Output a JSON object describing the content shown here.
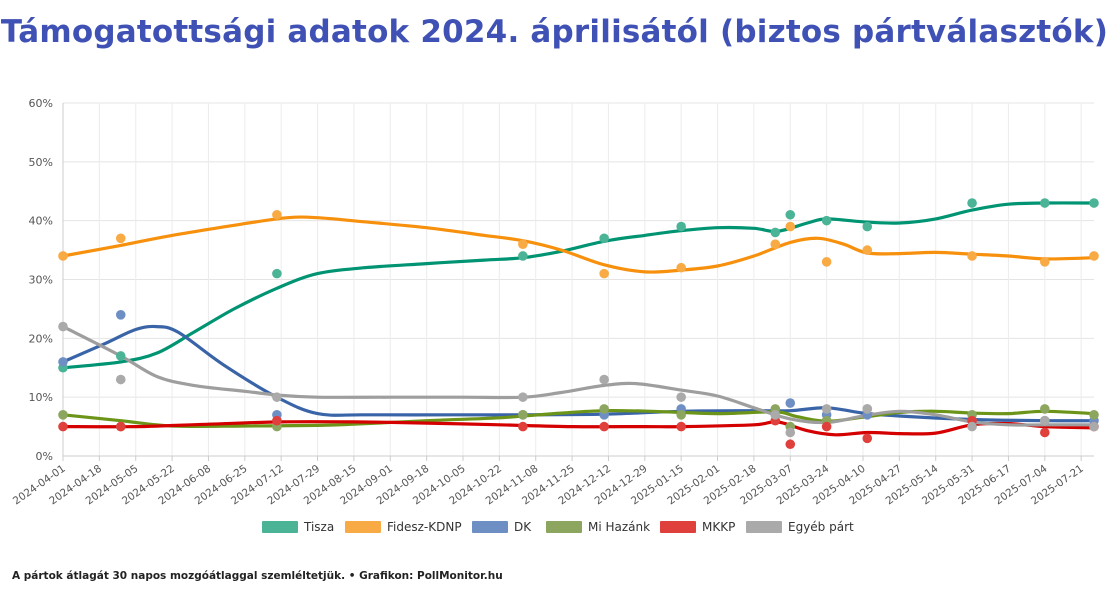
{
  "title": "Támogatottsági adatok 2024. áprilisától (biztos pártválasztók)",
  "footnote": "A pártok átlagát 30 napos mozgóátlaggal szemléltetjük. • Grafikon: PollMonitor.hu",
  "chart_data": {
    "type": "line",
    "title": "Támogatottsági adatok 2024. áprilisától (biztos pártválasztók)",
    "xlabel": "",
    "ylabel": "",
    "ylim": [
      0,
      60
    ],
    "grid": true,
    "legend_position": "bottom",
    "y_ticks": [
      "0%",
      "10%",
      "20%",
      "30%",
      "40%",
      "50%",
      "60%"
    ],
    "y_tick_values": [
      0,
      10,
      20,
      30,
      40,
      50,
      60
    ],
    "x_range": [
      "2024-04-01",
      "2025-07-27"
    ],
    "x_ticks": [
      "2024-04-01",
      "2024-04-18",
      "2024-05-05",
      "2024-05-22",
      "2024-06-08",
      "2024-06-25",
      "2024-07-12",
      "2024-07-29",
      "2024-08-15",
      "2024-09-01",
      "2024-09-18",
      "2024-10-05",
      "2024-10-22",
      "2024-11-08",
      "2024-11-25",
      "2024-12-12",
      "2024-12-29",
      "2025-01-15",
      "2025-02-01",
      "2025-02-18",
      "2025-03-07",
      "2025-03-24",
      "2025-04-10",
      "2025-04-27",
      "2025-05-14",
      "2025-05-31",
      "2025-06-17",
      "2025-07-04",
      "2025-07-21"
    ],
    "poll_dates": [
      "2024-04-01",
      "2024-04-28",
      "2024-07-10",
      "2024-11-02",
      "2024-12-10",
      "2025-01-15",
      "2025-02-28",
      "2025-03-07",
      "2025-03-24",
      "2025-04-12",
      "2025-05-31",
      "2025-07-04",
      "2025-07-27"
    ],
    "series": [
      {
        "name": "Tisza",
        "color": "#009473",
        "point_color": "#4bb396",
        "points": [
          [
            "2024-04-01",
            15
          ],
          [
            "2024-04-28",
            17
          ],
          [
            "2024-07-10",
            31
          ],
          [
            "2024-11-02",
            34
          ],
          [
            "2024-12-10",
            37
          ],
          [
            "2025-01-15",
            39
          ],
          [
            "2025-02-28",
            38
          ],
          [
            "2025-03-07",
            41
          ],
          [
            "2025-03-24",
            40
          ],
          [
            "2025-04-12",
            39
          ],
          [
            "2025-05-31",
            43
          ],
          [
            "2025-07-04",
            43
          ],
          [
            "2025-07-27",
            43
          ]
        ],
        "trend": [
          [
            "2024-04-01",
            15
          ],
          [
            "2024-04-28",
            16
          ],
          [
            "2024-05-15",
            17.5
          ],
          [
            "2024-06-01",
            21
          ],
          [
            "2024-06-20",
            25
          ],
          [
            "2024-07-10",
            28.5
          ],
          [
            "2024-07-29",
            31
          ],
          [
            "2024-08-20",
            32
          ],
          [
            "2024-09-18",
            32.7
          ],
          [
            "2024-10-15",
            33.3
          ],
          [
            "2024-11-02",
            33.7
          ],
          [
            "2024-11-20",
            34.8
          ],
          [
            "2024-12-10",
            36.5
          ],
          [
            "2024-12-29",
            37.5
          ],
          [
            "2025-01-15",
            38.3
          ],
          [
            "2025-02-01",
            38.8
          ],
          [
            "2025-02-18",
            38.7
          ],
          [
            "2025-03-01",
            38.2
          ],
          [
            "2025-03-15",
            39.6
          ],
          [
            "2025-03-24",
            40.3
          ],
          [
            "2025-04-10",
            39.8
          ],
          [
            "2025-04-27",
            39.6
          ],
          [
            "2025-05-14",
            40.3
          ],
          [
            "2025-05-31",
            41.8
          ],
          [
            "2025-06-17",
            42.8
          ],
          [
            "2025-07-04",
            43
          ],
          [
            "2025-07-27",
            43
          ]
        ]
      },
      {
        "name": "Fidesz-KDNP",
        "color": "#f6900d",
        "point_color": "#f8aa45",
        "points": [
          [
            "2024-04-01",
            34
          ],
          [
            "2024-04-28",
            37
          ],
          [
            "2024-07-10",
            41
          ],
          [
            "2024-11-02",
            36
          ],
          [
            "2024-12-10",
            31
          ],
          [
            "2025-01-15",
            32
          ],
          [
            "2025-02-28",
            36
          ],
          [
            "2025-03-07",
            39
          ],
          [
            "2025-03-24",
            33
          ],
          [
            "2025-04-12",
            35
          ],
          [
            "2025-05-31",
            34
          ],
          [
            "2025-07-04",
            33
          ],
          [
            "2025-07-27",
            34
          ]
        ],
        "trend": [
          [
            "2024-04-01",
            34
          ],
          [
            "2024-04-28",
            35.8
          ],
          [
            "2024-05-22",
            37.5
          ],
          [
            "2024-06-25",
            39.5
          ],
          [
            "2024-07-15",
            40.5
          ],
          [
            "2024-07-29",
            40.5
          ],
          [
            "2024-08-20",
            39.8
          ],
          [
            "2024-09-18",
            38.8
          ],
          [
            "2024-10-15",
            37.5
          ],
          [
            "2024-11-02",
            36.6
          ],
          [
            "2024-11-20",
            35
          ],
          [
            "2024-12-10",
            32.5
          ],
          [
            "2024-12-29",
            31.3
          ],
          [
            "2025-01-15",
            31.6
          ],
          [
            "2025-02-01",
            32.3
          ],
          [
            "2025-02-18",
            34
          ],
          [
            "2025-03-07",
            36.3
          ],
          [
            "2025-03-20",
            37
          ],
          [
            "2025-04-01",
            36
          ],
          [
            "2025-04-12",
            34.5
          ],
          [
            "2025-04-27",
            34.4
          ],
          [
            "2025-05-14",
            34.6
          ],
          [
            "2025-05-31",
            34.3
          ],
          [
            "2025-06-17",
            34
          ],
          [
            "2025-07-04",
            33.5
          ],
          [
            "2025-07-27",
            33.7
          ]
        ]
      },
      {
        "name": "DK",
        "color": "#3a64a8",
        "point_color": "#6e8fc4",
        "points": [
          [
            "2024-04-01",
            16
          ],
          [
            "2024-04-28",
            24
          ],
          [
            "2024-07-10",
            7
          ],
          [
            "2024-11-02",
            7
          ],
          [
            "2024-12-10",
            7
          ],
          [
            "2025-01-15",
            8
          ],
          [
            "2025-02-28",
            7
          ],
          [
            "2025-03-07",
            9
          ],
          [
            "2025-03-24",
            7
          ],
          [
            "2025-04-12",
            7
          ],
          [
            "2025-05-31",
            6
          ],
          [
            "2025-07-04",
            6
          ],
          [
            "2025-07-27",
            6
          ]
        ],
        "trend": [
          [
            "2024-04-01",
            16
          ],
          [
            "2024-04-20",
            19
          ],
          [
            "2024-05-05",
            21.5
          ],
          [
            "2024-05-15",
            22
          ],
          [
            "2024-05-25",
            21
          ],
          [
            "2024-06-15",
            15.5
          ],
          [
            "2024-07-10",
            10
          ],
          [
            "2024-07-29",
            7.2
          ],
          [
            "2024-08-20",
            7
          ],
          [
            "2024-10-01",
            7
          ],
          [
            "2024-11-02",
            7
          ],
          [
            "2024-12-10",
            7.1
          ],
          [
            "2025-01-15",
            7.6
          ],
          [
            "2025-02-18",
            7.7
          ],
          [
            "2025-03-07",
            7.7
          ],
          [
            "2025-03-24",
            8.2
          ],
          [
            "2025-04-10",
            7.3
          ],
          [
            "2025-04-27",
            6.8
          ],
          [
            "2025-05-31",
            6.2
          ],
          [
            "2025-07-04",
            6
          ],
          [
            "2025-07-27",
            6
          ]
        ]
      },
      {
        "name": "Mi Hazánk",
        "color": "#6b9418",
        "point_color": "#8ca65f",
        "points": [
          [
            "2024-04-01",
            7
          ],
          [
            "2024-04-28",
            5
          ],
          [
            "2024-07-10",
            5
          ],
          [
            "2024-11-02",
            7
          ],
          [
            "2024-12-10",
            8
          ],
          [
            "2025-01-15",
            7
          ],
          [
            "2025-02-28",
            8
          ],
          [
            "2025-03-07",
            5
          ],
          [
            "2025-03-24",
            6
          ],
          [
            "2025-04-12",
            8
          ],
          [
            "2025-05-31",
            7
          ],
          [
            "2025-07-04",
            8
          ],
          [
            "2025-07-27",
            7
          ]
        ],
        "trend": [
          [
            "2024-04-01",
            7
          ],
          [
            "2024-04-28",
            6
          ],
          [
            "2024-05-22",
            5.1
          ],
          [
            "2024-06-25",
            5.1
          ],
          [
            "2024-07-29",
            5.2
          ],
          [
            "2024-08-15",
            5.4
          ],
          [
            "2024-09-18",
            6
          ],
          [
            "2024-10-22",
            6.5
          ],
          [
            "2024-11-20",
            7.3
          ],
          [
            "2024-12-10",
            7.7
          ],
          [
            "2025-01-01",
            7.6
          ],
          [
            "2025-02-01",
            7.2
          ],
          [
            "2025-02-28",
            7.5
          ],
          [
            "2025-03-10",
            6.7
          ],
          [
            "2025-03-24",
            5.9
          ],
          [
            "2025-04-10",
            6.6
          ],
          [
            "2025-04-27",
            7.4
          ],
          [
            "2025-05-14",
            7.6
          ],
          [
            "2025-05-31",
            7.3
          ],
          [
            "2025-06-17",
            7.2
          ],
          [
            "2025-07-04",
            7.6
          ],
          [
            "2025-07-27",
            7.2
          ]
        ]
      },
      {
        "name": "MKKP",
        "color": "#d40000",
        "point_color": "#e0403c",
        "points": [
          [
            "2024-04-01",
            5
          ],
          [
            "2024-04-28",
            5
          ],
          [
            "2024-07-10",
            6
          ],
          [
            "2024-11-02",
            5
          ],
          [
            "2024-12-10",
            5
          ],
          [
            "2025-01-15",
            5
          ],
          [
            "2025-02-28",
            6
          ],
          [
            "2025-03-07",
            2
          ],
          [
            "2025-03-24",
            5
          ],
          [
            "2025-04-12",
            3
          ],
          [
            "2025-05-31",
            6
          ],
          [
            "2025-07-04",
            4
          ],
          [
            "2025-07-27",
            5
          ]
        ],
        "trend": [
          [
            "2024-04-01",
            5
          ],
          [
            "2024-05-05",
            5
          ],
          [
            "2024-06-08",
            5.4
          ],
          [
            "2024-07-12",
            5.8
          ],
          [
            "2024-08-15",
            5.8
          ],
          [
            "2024-09-18",
            5.6
          ],
          [
            "2024-10-22",
            5.3
          ],
          [
            "2024-11-25",
            5
          ],
          [
            "2024-12-29",
            5
          ],
          [
            "2025-01-15",
            5
          ],
          [
            "2025-02-18",
            5.3
          ],
          [
            "2025-03-01",
            5.8
          ],
          [
            "2025-03-15",
            4.3
          ],
          [
            "2025-03-28",
            3.6
          ],
          [
            "2025-04-12",
            4
          ],
          [
            "2025-04-27",
            3.8
          ],
          [
            "2025-05-14",
            3.9
          ],
          [
            "2025-05-31",
            5.3
          ],
          [
            "2025-06-17",
            5.5
          ],
          [
            "2025-07-04",
            5
          ],
          [
            "2025-07-27",
            4.8
          ]
        ]
      },
      {
        "name": "Egyéb párt",
        "color": "#9e9e9e",
        "point_color": "#aaaaaa",
        "points": [
          [
            "2024-04-01",
            22
          ],
          [
            "2024-04-28",
            13
          ],
          [
            "2024-07-10",
            10
          ],
          [
            "2024-11-02",
            10
          ],
          [
            "2024-12-10",
            13
          ],
          [
            "2025-01-15",
            10
          ],
          [
            "2025-02-28",
            7
          ],
          [
            "2025-03-07",
            4
          ],
          [
            "2025-03-24",
            8
          ],
          [
            "2025-04-12",
            8
          ],
          [
            "2025-05-31",
            5
          ],
          [
            "2025-07-04",
            6
          ],
          [
            "2025-07-27",
            5
          ]
        ],
        "trend": [
          [
            "2024-04-01",
            22
          ],
          [
            "2024-04-28",
            17
          ],
          [
            "2024-05-15",
            13.5
          ],
          [
            "2024-06-01",
            12
          ],
          [
            "2024-06-25",
            11
          ],
          [
            "2024-07-12",
            10.3
          ],
          [
            "2024-07-29",
            10
          ],
          [
            "2024-09-01",
            10
          ],
          [
            "2024-10-05",
            10
          ],
          [
            "2024-11-02",
            10
          ],
          [
            "2024-11-20",
            10.8
          ],
          [
            "2024-12-10",
            12
          ],
          [
            "2024-12-25",
            12.3
          ],
          [
            "2025-01-15",
            11.2
          ],
          [
            "2025-02-01",
            10.2
          ],
          [
            "2025-02-18",
            8.2
          ],
          [
            "2025-03-07",
            6.3
          ],
          [
            "2025-03-24",
            5.7
          ],
          [
            "2025-04-10",
            6.8
          ],
          [
            "2025-04-27",
            7.6
          ],
          [
            "2025-05-14",
            7
          ],
          [
            "2025-05-31",
            5.8
          ],
          [
            "2025-06-17",
            5.3
          ],
          [
            "2025-07-04",
            5.3
          ],
          [
            "2025-07-27",
            5.3
          ]
        ]
      }
    ]
  }
}
